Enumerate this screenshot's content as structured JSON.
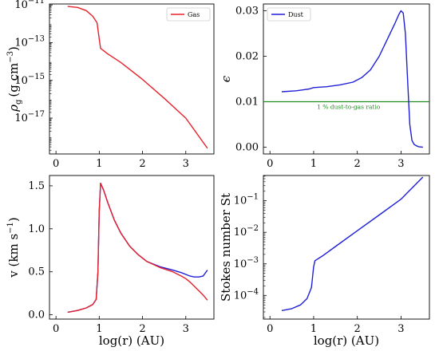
{
  "chart_data": [
    {
      "id": "gas-density",
      "type": "line",
      "ylabel_main": "ρ",
      "ylabel_sub": "g",
      "ylabel_unit": "(g cm",
      "ylabel_unit_exp": "−3",
      "ylabel_close": ")",
      "xlabel": "",
      "xlim": [
        -0.15,
        3.65
      ],
      "ylim_log": [
        -18.9,
        -10.95
      ],
      "yscale": "log",
      "xticks": [
        {
          "v": 0,
          "label": "0"
        },
        {
          "v": 1,
          "label": "1"
        },
        {
          "v": 2,
          "label": "2"
        },
        {
          "v": 3,
          "label": "3"
        }
      ],
      "yticks": [
        {
          "exp": -11,
          "base": "10",
          "label": "−11"
        },
        {
          "exp": -13,
          "base": "10",
          "label": "−13"
        },
        {
          "exp": -15,
          "base": "10",
          "label": "−15"
        },
        {
          "exp": -17,
          "base": "10",
          "label": "−17"
        }
      ],
      "legend": {
        "position": "top-right",
        "entries": [
          {
            "name": "Gas",
            "color": "#e8202a"
          }
        ]
      },
      "series": [
        {
          "name": "Gas",
          "color": "#e8202a",
          "x": [
            0.27,
            0.5,
            0.7,
            0.85,
            0.95,
            1.0,
            1.03,
            1.2,
            1.5,
            2.0,
            2.5,
            3.0,
            3.5
          ],
          "log_y": [
            -11.08,
            -11.13,
            -11.3,
            -11.6,
            -11.95,
            -12.8,
            -13.3,
            -13.6,
            -14.05,
            -14.95,
            -15.95,
            -17.0,
            -18.6
          ]
        }
      ]
    },
    {
      "id": "dust-to-gas",
      "type": "line",
      "ylabel": "ϵ",
      "xlabel": "",
      "xlim": [
        -0.15,
        3.65
      ],
      "ylim": [
        -0.0015,
        0.0315
      ],
      "xticks": [
        {
          "v": 0,
          "label": "0"
        },
        {
          "v": 1,
          "label": "1"
        },
        {
          "v": 2,
          "label": "2"
        },
        {
          "v": 3,
          "label": "3"
        }
      ],
      "yticks": [
        {
          "v": 0.0,
          "label": "0.00"
        },
        {
          "v": 0.01,
          "label": "0.01"
        },
        {
          "v": 0.02,
          "label": "0.02"
        },
        {
          "v": 0.03,
          "label": "0.03"
        }
      ],
      "legend": {
        "position": "top-left",
        "entries": [
          {
            "name": "Dust",
            "color": "#1f1fd6"
          }
        ]
      },
      "hline": {
        "y": 0.01,
        "color": "#228b22",
        "label": "1 % dust-to-gas ratio",
        "label_x": 1.8
      },
      "series": [
        {
          "name": "Dust",
          "color": "#1f1fd6",
          "x": [
            0.27,
            0.6,
            0.9,
            1.0,
            1.3,
            1.6,
            1.9,
            2.1,
            2.3,
            2.5,
            2.7,
            2.85,
            2.95,
            3.0,
            3.05,
            3.1,
            3.15,
            3.2,
            3.25,
            3.3,
            3.35,
            3.4,
            3.5
          ],
          "y": [
            0.0122,
            0.0124,
            0.0128,
            0.0131,
            0.0133,
            0.0137,
            0.0143,
            0.0153,
            0.017,
            0.02,
            0.024,
            0.027,
            0.0292,
            0.03,
            0.0295,
            0.025,
            0.015,
            0.005,
            0.0015,
            0.0006,
            0.0003,
            0.0001,
            0.0
          ]
        }
      ]
    },
    {
      "id": "velocity",
      "type": "line",
      "ylabel": "v (km s",
      "ylabel_exp": "−1",
      "ylabel_close": ")",
      "xlabel": "log(r) (AU)",
      "xlim": [
        -0.15,
        3.65
      ],
      "ylim": [
        -0.05,
        1.62
      ],
      "xticks": [
        {
          "v": 0,
          "label": "0"
        },
        {
          "v": 1,
          "label": "1"
        },
        {
          "v": 2,
          "label": "2"
        },
        {
          "v": 3,
          "label": "3"
        }
      ],
      "yticks": [
        {
          "v": 0.0,
          "label": "0.0"
        },
        {
          "v": 0.5,
          "label": "0.5"
        },
        {
          "v": 1.0,
          "label": "1.0"
        },
        {
          "v": 1.5,
          "label": "1.5"
        }
      ],
      "series": [
        {
          "name": "Dust",
          "color": "#1f1fd6",
          "x": [
            0.27,
            0.5,
            0.7,
            0.85,
            0.93,
            0.97,
            1.0,
            1.03,
            1.1,
            1.2,
            1.35,
            1.5,
            1.7,
            1.9,
            2.1,
            2.4,
            2.7,
            2.9,
            3.0,
            3.1,
            3.2,
            3.3,
            3.4,
            3.5
          ],
          "y": [
            0.03,
            0.05,
            0.08,
            0.12,
            0.18,
            0.5,
            1.2,
            1.53,
            1.45,
            1.3,
            1.1,
            0.95,
            0.8,
            0.7,
            0.62,
            0.56,
            0.52,
            0.49,
            0.47,
            0.45,
            0.44,
            0.44,
            0.45,
            0.52
          ]
        },
        {
          "name": "Gas",
          "color": "#e8202a",
          "x": [
            0.27,
            0.5,
            0.7,
            0.85,
            0.93,
            0.97,
            1.0,
            1.03,
            1.1,
            1.2,
            1.35,
            1.5,
            1.7,
            1.9,
            2.1,
            2.4,
            2.7,
            2.9,
            3.0,
            3.1,
            3.2,
            3.3,
            3.4,
            3.5
          ],
          "y": [
            0.03,
            0.05,
            0.08,
            0.12,
            0.18,
            0.5,
            1.2,
            1.53,
            1.45,
            1.3,
            1.1,
            0.95,
            0.8,
            0.7,
            0.62,
            0.55,
            0.5,
            0.45,
            0.42,
            0.38,
            0.33,
            0.28,
            0.23,
            0.17
          ]
        }
      ]
    },
    {
      "id": "stokes",
      "type": "line",
      "ylabel": "Stokes number St",
      "xlabel": "log(r) (AU)",
      "xlim": [
        -0.15,
        3.65
      ],
      "ylim_log": [
        -4.75,
        -0.2
      ],
      "yscale": "log",
      "xticks": [
        {
          "v": 0,
          "label": "0"
        },
        {
          "v": 1,
          "label": "1"
        },
        {
          "v": 2,
          "label": "2"
        },
        {
          "v": 3,
          "label": "3"
        }
      ],
      "yticks": [
        {
          "exp": -4,
          "base": "10",
          "label": "−4"
        },
        {
          "exp": -3,
          "base": "10",
          "label": "−3"
        },
        {
          "exp": -2,
          "base": "10",
          "label": "−2"
        },
        {
          "exp": -1,
          "base": "10",
          "label": "−1"
        }
      ],
      "series": [
        {
          "name": "Dust",
          "color": "#1f1fd6",
          "x": [
            0.27,
            0.5,
            0.7,
            0.85,
            0.95,
            1.0,
            1.03,
            1.2,
            1.5,
            2.0,
            2.5,
            3.0,
            3.5
          ],
          "log_y": [
            -4.48,
            -4.42,
            -4.3,
            -4.1,
            -3.75,
            -3.1,
            -2.9,
            -2.75,
            -2.45,
            -1.95,
            -1.45,
            -0.95,
            -0.25
          ]
        }
      ]
    }
  ]
}
